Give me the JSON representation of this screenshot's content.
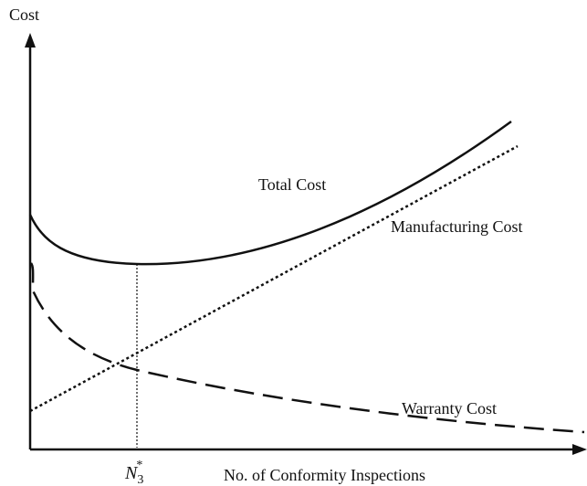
{
  "axes": {
    "y_label": "Cost",
    "x_label": "No. of Conformity Inspections"
  },
  "curves": {
    "total": "Total Cost",
    "manufacturing": "Manufacturing Cost",
    "warranty": "Warranty Cost"
  },
  "optimum_label": {
    "base": "N",
    "subscript": "3",
    "superscript": "*"
  }
}
